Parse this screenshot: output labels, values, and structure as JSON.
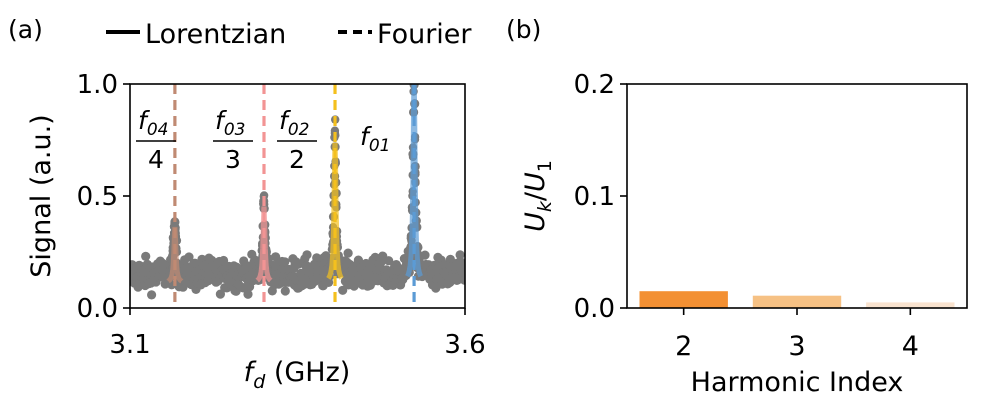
{
  "panel_labels": {
    "a": "(a)",
    "b": "(b)"
  },
  "legend": {
    "items": [
      {
        "label": "Lorentzian",
        "style": "solid"
      },
      {
        "label": "Fourier",
        "style": "dashed"
      }
    ]
  },
  "chart_data": [
    {
      "type": "scatter",
      "panel": "(a)",
      "xlabel_symbol": "f",
      "xlabel_sub": "d",
      "xlabel_rest": " (GHz)",
      "ylabel": "Signal (a.u.)",
      "xlim": [
        3.1,
        3.6
      ],
      "ylim": [
        0.0,
        1.0
      ],
      "xticks": [
        "3.1",
        "3.6"
      ],
      "yticks": [
        "0.0",
        "0.5",
        "1.0"
      ],
      "noise_level": 0.15,
      "peaks": [
        {
          "name": "f01",
          "center": 3.524,
          "height": 1.0,
          "color": "#5b9bd5",
          "label_num": "f",
          "label_sub": "01",
          "label_den": ""
        },
        {
          "name": "f02/2",
          "center": 3.406,
          "height": 0.68,
          "color": "#f4c01e",
          "label_num": "f",
          "label_sub": "02",
          "label_den": "2"
        },
        {
          "name": "f03/3",
          "center": 3.3,
          "height": 0.37,
          "color": "#f29494",
          "label_num": "f",
          "label_sub": "03",
          "label_den": "3"
        },
        {
          "name": "f04/4",
          "center": 3.167,
          "height": 0.27,
          "color": "#c08a73",
          "label_num": "f",
          "label_sub": "04",
          "label_den": "4"
        }
      ]
    },
    {
      "type": "bar",
      "panel": "(b)",
      "categories": [
        "2",
        "3",
        "4"
      ],
      "values": [
        0.015,
        0.011,
        0.005
      ],
      "colors": [
        "#f39033",
        "#f6c184",
        "#f9e3cf"
      ],
      "xlabel": "Harmonic Index",
      "ylabel_main": "U",
      "ylabel_sub1": "k",
      "ylabel_den": "U",
      "ylabel_sub2": "1",
      "ylim": [
        0.0,
        0.2
      ],
      "yticks": [
        "0.0",
        "0.1",
        "0.2"
      ]
    }
  ]
}
